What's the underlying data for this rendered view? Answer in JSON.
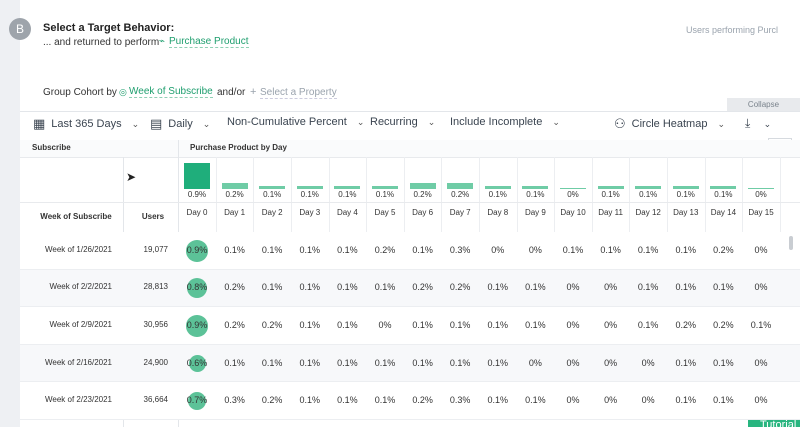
{
  "header": {
    "badge": "B",
    "title": "Select a Target Behavior:",
    "subtitle": "... and returned to perform",
    "event": "Purchase Product",
    "right_label": "Users performing Purcl"
  },
  "group": {
    "label": "Group Cohort by",
    "property": "Week of Subscribe",
    "conjunction": "and/or",
    "add": "Select a Property"
  },
  "collapse": "Collapse",
  "toolbar": [
    "Last 365 Days",
    "Daily",
    "Non-Cumulative Percent",
    "Recurring",
    "Include Incomplete",
    "Circle Heatmap"
  ],
  "table": {
    "group_header": "Subscribe",
    "metric_header": "Purchase Product by Day",
    "summary": [
      "0.9%",
      "0.2%",
      "0.1%",
      "0.1%",
      "0.1%",
      "0.1%",
      "0.2%",
      "0.2%",
      "0.1%",
      "0.1%",
      "0%",
      "0.1%",
      "0.1%",
      "0.1%",
      "0.1%",
      "0%"
    ],
    "columns": [
      "Week of Subscribe",
      "Users",
      "Day 0",
      "Day 1",
      "Day 2",
      "Day 3",
      "Day 4",
      "Day 5",
      "Day 6",
      "Day 7",
      "Day 8",
      "Day 9",
      "Day 10",
      "Day 11",
      "Day 12",
      "Day 13",
      "Day 14",
      "Day 15"
    ],
    "rows": [
      {
        "week": "Week of 1/26/2021",
        "users": "19,077",
        "values": [
          "0.9%",
          "0.1%",
          "0.1%",
          "0.1%",
          "0.1%",
          "0.2%",
          "0.1%",
          "0.3%",
          "0%",
          "0%",
          "0.1%",
          "0.1%",
          "0.1%",
          "0.1%",
          "0.2%",
          "0%"
        ]
      },
      {
        "week": "Week of 2/2/2021",
        "users": "28,813",
        "values": [
          "0.8%",
          "0.2%",
          "0.1%",
          "0.1%",
          "0.1%",
          "0.1%",
          "0.2%",
          "0.2%",
          "0.1%",
          "0.1%",
          "0%",
          "0%",
          "0.1%",
          "0.1%",
          "0.1%",
          "0%"
        ]
      },
      {
        "week": "Week of 2/9/2021",
        "users": "30,956",
        "values": [
          "0.9%",
          "0.2%",
          "0.2%",
          "0.1%",
          "0.1%",
          "0%",
          "0.1%",
          "0.1%",
          "0.1%",
          "0.1%",
          "0%",
          "0%",
          "0.1%",
          "0.2%",
          "0.2%",
          "0.1%"
        ]
      },
      {
        "week": "Week of 2/16/2021",
        "users": "24,900",
        "values": [
          "0.6%",
          "0.1%",
          "0.1%",
          "0.1%",
          "0.1%",
          "0.1%",
          "0.1%",
          "0.1%",
          "0.1%",
          "0%",
          "0%",
          "0%",
          "0%",
          "0.1%",
          "0.1%",
          "0%"
        ]
      },
      {
        "week": "Week of 2/23/2021",
        "users": "36,664",
        "values": [
          "0.7%",
          "0.3%",
          "0.2%",
          "0.1%",
          "0.1%",
          "0.1%",
          "0.2%",
          "0.3%",
          "0.1%",
          "0.1%",
          "0%",
          "0%",
          "0%",
          "0.1%",
          "0.1%",
          "0%"
        ]
      }
    ]
  },
  "tutorial": "Tutorial"
}
